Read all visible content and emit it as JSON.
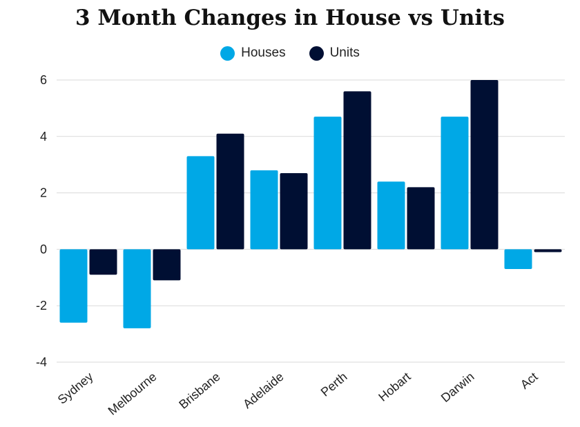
{
  "chart_data": {
    "type": "bar",
    "title": "3 Month Changes in House vs Units",
    "categories": [
      "Sydney",
      "Melbourne",
      "Brisbane",
      "Adelaide",
      "Perth",
      "Hobart",
      "Darwin",
      "Act"
    ],
    "series": [
      {
        "name": "Houses",
        "color": "#00a8e6",
        "values": [
          -2.6,
          -2.8,
          3.3,
          2.8,
          4.7,
          2.4,
          4.7,
          -0.7
        ]
      },
      {
        "name": "Units",
        "color": "#000f33",
        "values": [
          -0.9,
          -1.1,
          4.1,
          2.7,
          5.6,
          2.2,
          6.0,
          -0.1
        ]
      }
    ],
    "yticks": [
      "6",
      "4",
      "2",
      "0",
      "-2",
      "-4"
    ],
    "ylim": [
      -4,
      6
    ],
    "xlabel": "",
    "ylabel": "",
    "grid": true,
    "legend_position": "top-center",
    "grid_color": "#d9d9d9",
    "text_color": "#222222"
  }
}
